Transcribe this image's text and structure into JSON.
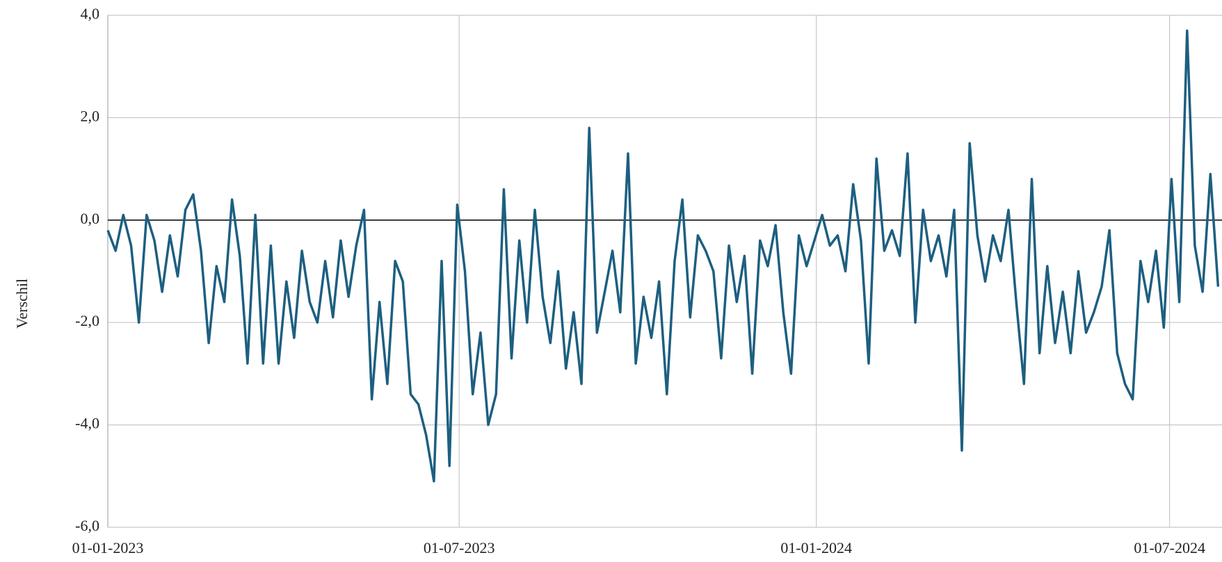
{
  "chart_data": {
    "type": "line",
    "y_label": "Verschil",
    "x": [
      "2023-01-01",
      "2023-01-05",
      "2023-01-09",
      "2023-01-13",
      "2023-01-17",
      "2023-01-21",
      "2023-01-25",
      "2023-01-29",
      "2023-02-02",
      "2023-02-06",
      "2023-02-10",
      "2023-02-14",
      "2023-02-18",
      "2023-02-22",
      "2023-02-26",
      "2023-03-02",
      "2023-03-06",
      "2023-03-10",
      "2023-03-14",
      "2023-03-18",
      "2023-03-22",
      "2023-03-26",
      "2023-03-30",
      "2023-04-03",
      "2023-04-07",
      "2023-04-11",
      "2023-04-15",
      "2023-04-19",
      "2023-04-23",
      "2023-04-27",
      "2023-05-01",
      "2023-05-05",
      "2023-05-09",
      "2023-05-13",
      "2023-05-17",
      "2023-05-21",
      "2023-05-25",
      "2023-05-29",
      "2023-06-02",
      "2023-06-06",
      "2023-06-10",
      "2023-06-14",
      "2023-06-18",
      "2023-06-22",
      "2023-06-26",
      "2023-06-30",
      "2023-07-04",
      "2023-07-08",
      "2023-07-12",
      "2023-07-16",
      "2023-07-20",
      "2023-07-24",
      "2023-07-28",
      "2023-08-01",
      "2023-08-05",
      "2023-08-09",
      "2023-08-13",
      "2023-08-17",
      "2023-08-21",
      "2023-08-25",
      "2023-08-29",
      "2023-09-02",
      "2023-09-06",
      "2023-09-10",
      "2023-09-14",
      "2023-09-18",
      "2023-09-22",
      "2023-09-26",
      "2023-09-30",
      "2023-10-04",
      "2023-10-08",
      "2023-10-12",
      "2023-10-16",
      "2023-10-20",
      "2023-10-24",
      "2023-10-28",
      "2023-11-01",
      "2023-11-05",
      "2023-11-09",
      "2023-11-13",
      "2023-11-17",
      "2023-11-21",
      "2023-11-25",
      "2023-11-29",
      "2023-12-03",
      "2023-12-07",
      "2023-12-11",
      "2023-12-15",
      "2023-12-19",
      "2023-12-23",
      "2023-12-27",
      "2023-12-31",
      "2024-01-04",
      "2024-01-08",
      "2024-01-12",
      "2024-01-16",
      "2024-01-20",
      "2024-01-24",
      "2024-01-28",
      "2024-02-01",
      "2024-02-05",
      "2024-02-09",
      "2024-02-13",
      "2024-02-17",
      "2024-02-21",
      "2024-02-25",
      "2024-02-29",
      "2024-03-04",
      "2024-03-08",
      "2024-03-12",
      "2024-03-16",
      "2024-03-20",
      "2024-03-24",
      "2024-03-28",
      "2024-04-01",
      "2024-04-05",
      "2024-04-09",
      "2024-04-13",
      "2024-04-17",
      "2024-04-21",
      "2024-04-25",
      "2024-04-29",
      "2024-05-03",
      "2024-05-07",
      "2024-05-11",
      "2024-05-15",
      "2024-05-19",
      "2024-05-23",
      "2024-05-27",
      "2024-05-31",
      "2024-06-04",
      "2024-06-08",
      "2024-06-12",
      "2024-06-16",
      "2024-06-20",
      "2024-06-24",
      "2024-06-28",
      "2024-07-02",
      "2024-07-06",
      "2024-07-10",
      "2024-07-14",
      "2024-07-18",
      "2024-07-22",
      "2024-07-26"
    ],
    "series": [
      {
        "color": "#1d5f80",
        "values": [
          -0.2,
          -0.6,
          0.1,
          -0.5,
          -2.0,
          0.1,
          -0.4,
          -1.4,
          -0.3,
          -1.1,
          0.2,
          0.5,
          -0.6,
          -2.4,
          -0.9,
          -1.6,
          0.4,
          -0.7,
          -2.8,
          0.1,
          -2.8,
          -0.5,
          -2.8,
          -1.2,
          -2.3,
          -0.6,
          -1.6,
          -2.0,
          -0.8,
          -1.9,
          -0.4,
          -1.5,
          -0.5,
          0.2,
          -3.5,
          -1.6,
          -3.2,
          -0.8,
          -1.2,
          -3.4,
          -3.6,
          -4.2,
          -5.1,
          -0.8,
          -4.8,
          0.3,
          -1.0,
          -3.4,
          -2.2,
          -4.0,
          -3.4,
          0.6,
          -2.7,
          -0.4,
          -2.0,
          0.2,
          -1.5,
          -2.4,
          -1.0,
          -2.9,
          -1.8,
          -3.2,
          1.8,
          -2.2,
          -1.4,
          -0.6,
          -1.8,
          1.3,
          -2.8,
          -1.5,
          -2.3,
          -1.2,
          -3.4,
          -0.8,
          0.4,
          -1.9,
          -0.3,
          -0.6,
          -1.0,
          -2.7,
          -0.5,
          -1.6,
          -0.7,
          -3.0,
          -0.4,
          -0.9,
          -0.1,
          -1.8,
          -3.0,
          -0.3,
          -0.9,
          -0.4,
          0.1,
          -0.5,
          -0.3,
          -1.0,
          0.7,
          -0.4,
          -2.8,
          1.2,
          -0.6,
          -0.2,
          -0.7,
          1.3,
          -2.0,
          0.2,
          -0.8,
          -0.3,
          -1.1,
          0.2,
          -4.5,
          1.5,
          -0.3,
          -1.2,
          -0.3,
          -0.8,
          0.2,
          -1.6,
          -3.2,
          0.8,
          -2.6,
          -0.9,
          -2.4,
          -1.4,
          -2.6,
          -1.0,
          -2.2,
          -1.8,
          -1.3,
          -0.2,
          -2.6,
          -3.2,
          -3.5,
          -0.8,
          -1.6,
          -0.6,
          -2.1,
          0.8,
          -1.6,
          3.7,
          -0.5,
          -1.4,
          0.9,
          -1.3
        ]
      }
    ],
    "xlim": [
      "2023-01-01",
      "2024-07-28"
    ],
    "xticks": [
      {
        "value": "2023-01-01",
        "label": "01-01-2023"
      },
      {
        "value": "2023-07-01",
        "label": "01-07-2023"
      },
      {
        "value": "2024-01-01",
        "label": "01-01-2024"
      },
      {
        "value": "2024-07-01",
        "label": "01-07-2024"
      }
    ],
    "ylim": [
      -6,
      4
    ],
    "yticks": [
      {
        "value": -6,
        "label": "-6,0"
      },
      {
        "value": -4,
        "label": "-4,0"
      },
      {
        "value": -2,
        "label": "-2,0"
      },
      {
        "value": 0,
        "label": "0,0"
      },
      {
        "value": 2,
        "label": "2,0"
      },
      {
        "value": 4,
        "label": "4,0"
      }
    ],
    "grid": true
  }
}
